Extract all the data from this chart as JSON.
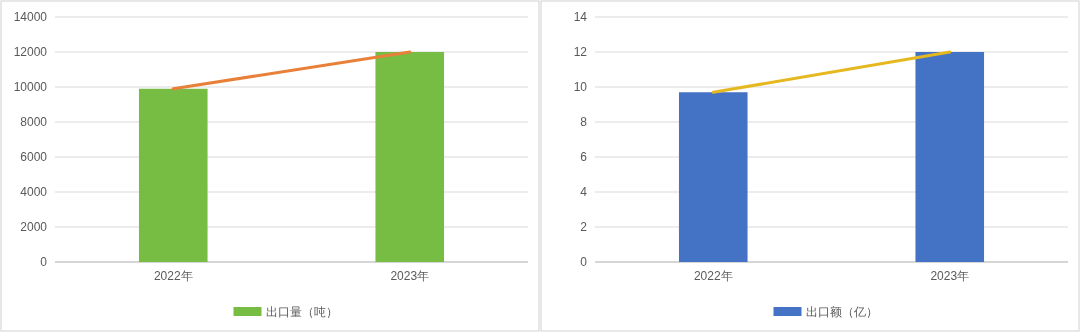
{
  "chart_data": [
    {
      "type": "bar",
      "categories": [
        "2022年",
        "2023年"
      ],
      "ylim": [
        0,
        14000
      ],
      "yticks": [
        0,
        2000,
        4000,
        6000,
        8000,
        10000,
        12000,
        14000
      ],
      "grid": "y",
      "legend": "bottom",
      "series": [
        {
          "name": "出口量（吨）",
          "color": "#77bc43",
          "values": [
            9900,
            12000
          ]
        },
        {
          "type": "line",
          "color": "#e8803a",
          "values": [
            9900,
            12000
          ]
        }
      ]
    },
    {
      "type": "bar",
      "categories": [
        "2022年",
        "2023年"
      ],
      "ylim": [
        0,
        14
      ],
      "yticks": [
        0,
        2,
        4,
        6,
        8,
        10,
        12,
        14
      ],
      "grid": "y",
      "legend": "bottom",
      "series": [
        {
          "name": "出口额（亿）",
          "color": "#4472c4",
          "values": [
            9.7,
            12
          ]
        },
        {
          "type": "line",
          "color": "#e6b820",
          "values": [
            9.7,
            12
          ]
        }
      ]
    }
  ]
}
